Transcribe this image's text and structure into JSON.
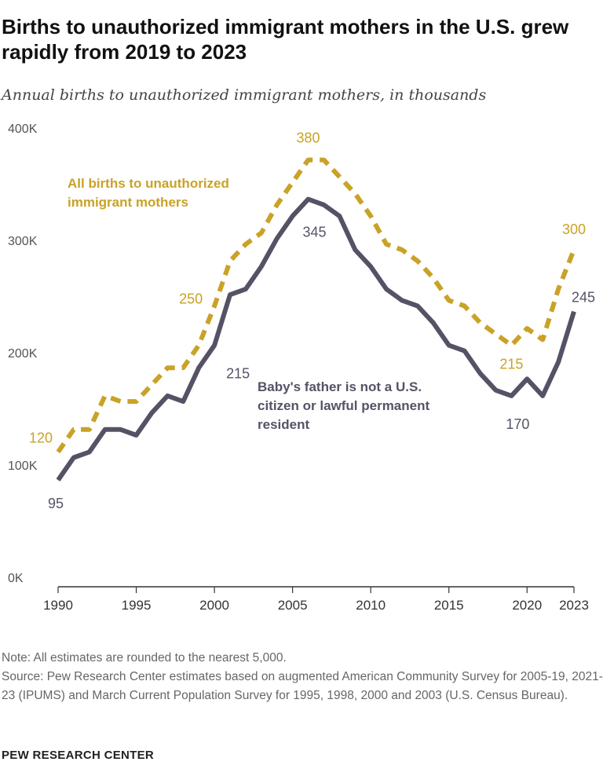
{
  "title": "Births to unauthorized immigrant mothers in the U.S. grew rapidly from 2019 to 2023",
  "subtitle": "Annual births to unauthorized immigrant mothers, in thousands",
  "chart_data": {
    "type": "line",
    "x": [
      1990,
      1991,
      1992,
      1993,
      1994,
      1995,
      1996,
      1997,
      1998,
      1999,
      2000,
      2001,
      2002,
      2003,
      2004,
      2005,
      2006,
      2007,
      2008,
      2009,
      2010,
      2011,
      2012,
      2013,
      2014,
      2015,
      2016,
      2017,
      2018,
      2019,
      2020,
      2021,
      2022,
      2023
    ],
    "series": [
      {
        "name": "All births to unauthorized immigrant mothers",
        "color": "#c9a227",
        "style": "dashed",
        "values": [
          120,
          140,
          140,
          170,
          165,
          165,
          180,
          195,
          195,
          215,
          250,
          290,
          305,
          315,
          340,
          360,
          380,
          380,
          365,
          350,
          330,
          305,
          300,
          290,
          275,
          255,
          250,
          235,
          225,
          215,
          230,
          220,
          265,
          300
        ]
      },
      {
        "name": "Baby's father is not a U.S. citizen or lawful permanent resident",
        "color": "#565266",
        "style": "solid",
        "values": [
          95,
          115,
          120,
          140,
          140,
          135,
          155,
          170,
          165,
          195,
          215,
          260,
          265,
          285,
          310,
          330,
          345,
          340,
          330,
          300,
          285,
          265,
          255,
          250,
          235,
          215,
          210,
          190,
          175,
          170,
          185,
          170,
          200,
          245
        ]
      }
    ],
    "series_label_lines": [
      [
        "All births to unauthorized",
        "immigrant mothers"
      ],
      [
        "Baby's father is not a U.S.",
        "citizen or lawful permanent",
        "resident"
      ]
    ],
    "data_labels": [
      {
        "series": 0,
        "x": 1990,
        "text": "120"
      },
      {
        "series": 0,
        "x": 2000,
        "text": "250"
      },
      {
        "series": 0,
        "x": 2006,
        "text": "380"
      },
      {
        "series": 0,
        "x": 2019,
        "text": "215"
      },
      {
        "series": 0,
        "x": 2023,
        "text": "300"
      },
      {
        "series": 1,
        "x": 1990,
        "text": "95"
      },
      {
        "series": 1,
        "x": 2000,
        "text": "215"
      },
      {
        "series": 1,
        "x": 2006,
        "text": "345"
      },
      {
        "series": 1,
        "x": 2019,
        "text": "170"
      },
      {
        "series": 1,
        "x": 2023,
        "text": "245"
      }
    ],
    "yticks": [
      0,
      100,
      200,
      300,
      400
    ],
    "ytick_labels": [
      "0K",
      "100K",
      "200K",
      "300K",
      "400K"
    ],
    "xticks": [
      1990,
      1995,
      2000,
      2005,
      2010,
      2015,
      2020,
      2023
    ],
    "xtick_labels": [
      "1990",
      "1995",
      "2000",
      "2005",
      "2010",
      "2015",
      "2020",
      "2023"
    ],
    "ylim": [
      0,
      400
    ],
    "xlim": [
      1990,
      2023
    ],
    "grid": false
  },
  "note": "Note: All estimates are rounded to the nearest 5,000.",
  "source": "Source: Pew Research Center estimates based on augmented American Community Survey for 2005-19, 2021-23 (IPUMS) and March Current Population Survey for 1995, 1998, 2000 and 2003 (U.S. Census Bureau).",
  "brand": "PEW RESEARCH CENTER"
}
